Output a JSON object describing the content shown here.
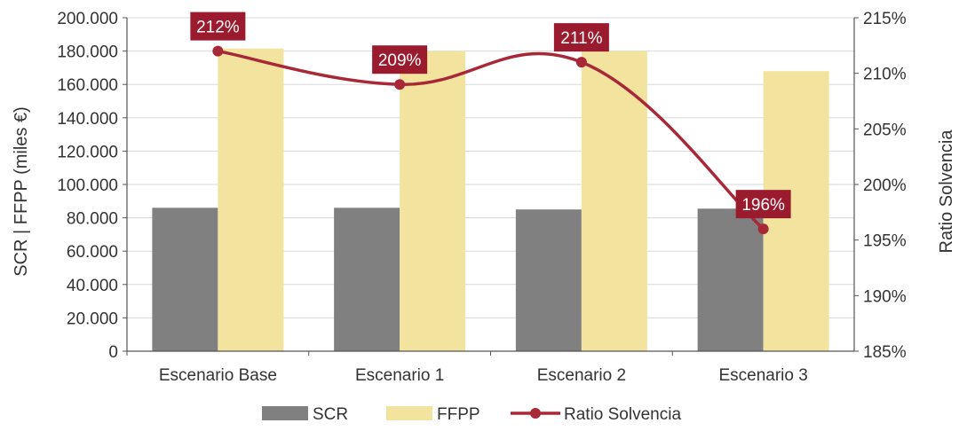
{
  "chart_data": {
    "type": "bar",
    "categories": [
      "Escenario Base",
      "Escenario 1",
      "Escenario 2",
      "Escenario 3"
    ],
    "series": [
      {
        "name": "SCR",
        "type": "bar",
        "axis": "left",
        "values": [
          86000,
          86000,
          85000,
          85500
        ]
      },
      {
        "name": "FFPP",
        "type": "bar",
        "axis": "left",
        "values": [
          181500,
          180000,
          180000,
          168000
        ]
      },
      {
        "name": "Ratio Solvencia",
        "type": "line",
        "axis": "right",
        "values": [
          212,
          209,
          211,
          196
        ],
        "labels": [
          "212%",
          "209%",
          "211%",
          "196%"
        ]
      }
    ],
    "ylabel": "SCR | FFPP (miles €)",
    "y2label": "Ratio Solvencia",
    "ylim": [
      0,
      200000
    ],
    "y2lim": [
      185,
      215
    ],
    "yticks": [
      "0",
      "20.000",
      "40.000",
      "60.000",
      "80.000",
      "100.000",
      "120.000",
      "140.000",
      "160.000",
      "180.000",
      "200.000"
    ],
    "y2ticks": [
      "185%",
      "190%",
      "195%",
      "200%",
      "205%",
      "210%",
      "215%"
    ],
    "legend_position": "bottom",
    "grid": true,
    "colors": {
      "SCR": "#808080",
      "FFPP": "#f2e49e",
      "Ratio Solvencia": "#a82838",
      "label_bg": "#9b1b2e"
    }
  }
}
